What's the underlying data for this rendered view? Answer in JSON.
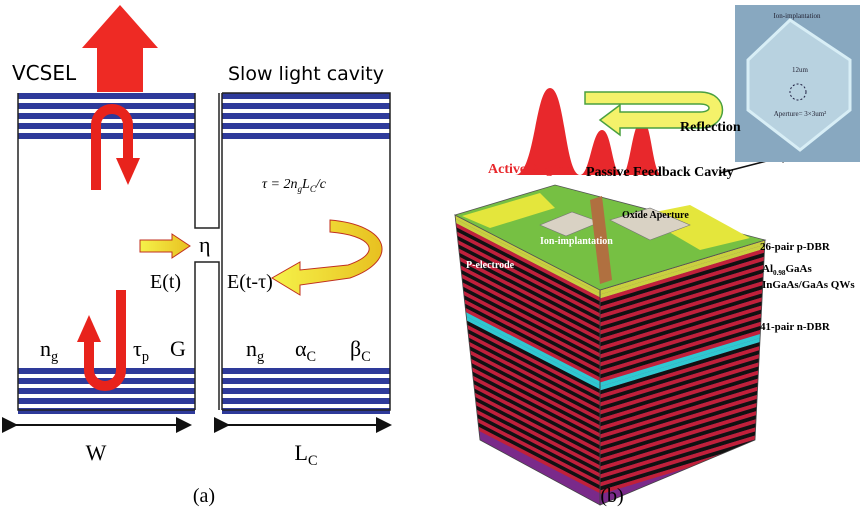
{
  "panel_a": {
    "vcsel": "VCSEL",
    "cavity": "Slow light cavity",
    "delay": [
      "τ = 2n",
      "g",
      "L",
      "C",
      "/c"
    ],
    "coupling": "η",
    "field_in": "E(t)",
    "field_out": "E(t-τ)",
    "ng_left": [
      "n",
      "g"
    ],
    "tau_p": [
      "τ",
      "p"
    ],
    "gain": "G",
    "ng_right": [
      "n",
      "g"
    ],
    "alpha": [
      "α",
      "C"
    ],
    "beta": [
      "β",
      "C"
    ],
    "width": "W",
    "length": [
      "L",
      "C"
    ],
    "caption": "(a)"
  },
  "panel_b": {
    "reflection": "Reflection",
    "active": "Active Region",
    "passive": "Passive Feedback Cavity",
    "oxide": "Oxide Aperture",
    "ion": "Ion-implantation",
    "electrode": "P-electrode",
    "p_dbr": "26-pair p-DBR",
    "algaas": [
      "Al",
      "0.98",
      "GaAs"
    ],
    "qws": "InGaAs/GaAs QWs",
    "n_dbr": "41-pair n-DBR",
    "inset_ion": "Ion-implantation",
    "inset_size": "12um",
    "inset_aperture": "Aperture= 3×3um²",
    "caption": "(b)"
  }
}
